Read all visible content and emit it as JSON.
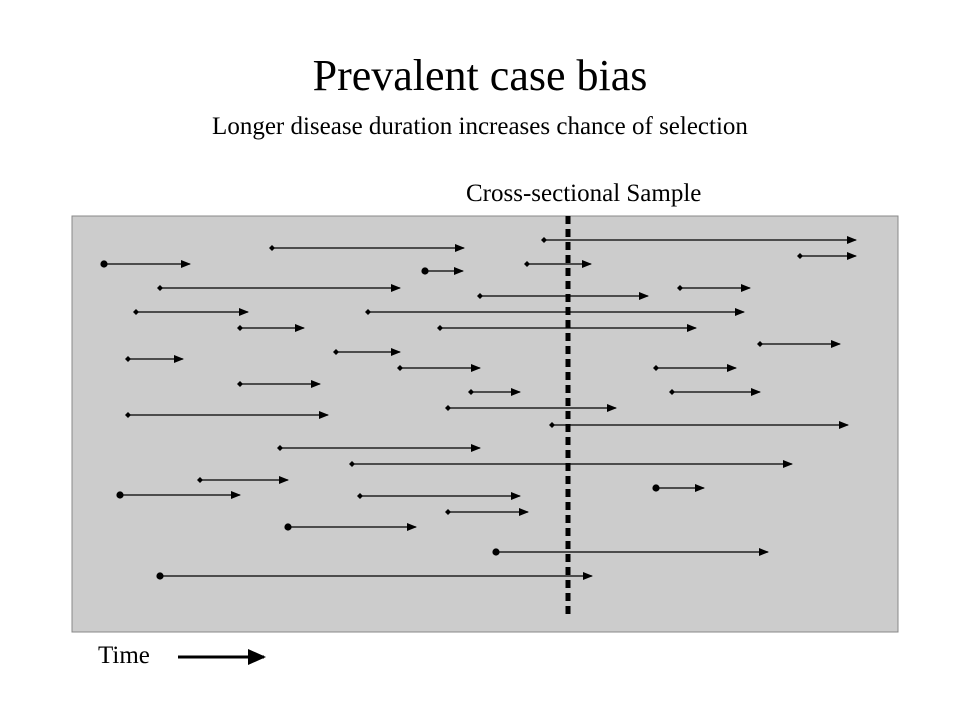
{
  "title": "Prevalent case bias",
  "subtitle": "Longer disease duration increases chance of selection",
  "cross_section_label": "Cross-sectional  Sample",
  "time_label": "Time",
  "colors": {
    "panel_fill": "#cccccc",
    "panel_border": "#888888",
    "ink": "#000000"
  },
  "icons": {
    "case_start_dot": "filled-circle",
    "case_start_diamond": "small-diamond",
    "case_end": "arrowhead",
    "sample_line": "dashed-vertical-line",
    "time_direction": "right-arrow"
  }
}
